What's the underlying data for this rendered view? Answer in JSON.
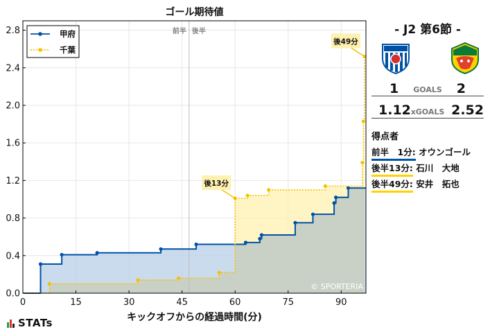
{
  "chart_data": {
    "type": "line",
    "title": "ゴール期待値",
    "xlabel": "キックオフからの経過時間(分)",
    "ylabel": "",
    "xlim": [
      0,
      97
    ],
    "ylim": [
      0,
      2.9
    ],
    "xticks": [
      0,
      15,
      30,
      45,
      60,
      75,
      90
    ],
    "yticks": [
      0.0,
      0.4,
      0.8,
      1.2,
      1.6,
      2.0,
      2.4,
      2.8
    ],
    "grid": true,
    "legend": "top-left",
    "half_marker": {
      "x": 47,
      "left_label": "前半",
      "right_label": "後半"
    },
    "watermark": "© SPORTERIA",
    "series": [
      {
        "name": "甲府",
        "color": "#0051a6",
        "fill": "#b9cfe8",
        "style": "solid",
        "x": [
          0,
          5,
          11,
          21,
          39,
          49,
          63,
          67,
          67.5,
          77,
          82,
          88,
          88.5,
          92,
          97
        ],
        "y": [
          0,
          0.31,
          0.41,
          0.43,
          0.47,
          0.52,
          0.54,
          0.58,
          0.62,
          0.75,
          0.84,
          0.96,
          1.02,
          1.12,
          1.12
        ]
      },
      {
        "name": "千葉",
        "color": "#f5c200",
        "fill": "#fdf0b0",
        "style": "dotted",
        "x": [
          0,
          7.5,
          32.5,
          44,
          55.5,
          60,
          63.5,
          69.5,
          85.5,
          96,
          96.3,
          96.6
        ],
        "y": [
          0,
          0.1,
          0.14,
          0.16,
          0.22,
          1.01,
          1.04,
          1.1,
          1.14,
          1.39,
          1.83,
          2.52
        ]
      }
    ],
    "annotations": [
      {
        "label": "後13分",
        "x": 60,
        "y": 1.01
      },
      {
        "label": "後49分",
        "x": 96.6,
        "y": 2.52
      }
    ]
  },
  "match": {
    "title": "- J2 第6節 -",
    "home_crest": "kofu-crest-icon",
    "away_crest": "chiba-crest-icon",
    "goals_home": "1",
    "goals_label": "GOALS",
    "goals_away": "2",
    "xg_home": "1.12",
    "xg_label": "xGOALS",
    "xg_away": "2.52",
    "scorers_title": "得点者",
    "scorers": [
      {
        "team": "home",
        "time": "前半　1分:",
        "name": "オウンゴール"
      },
      {
        "team": "away",
        "time": "後半13分:",
        "name": "石川　大地"
      },
      {
        "team": "away",
        "time": "後半49分:",
        "name": "安井　拓也"
      }
    ]
  },
  "brand": {
    "logo_text": "STATs",
    "bar_colors": [
      "#1aa34a",
      "#e03030",
      "#222222"
    ]
  }
}
